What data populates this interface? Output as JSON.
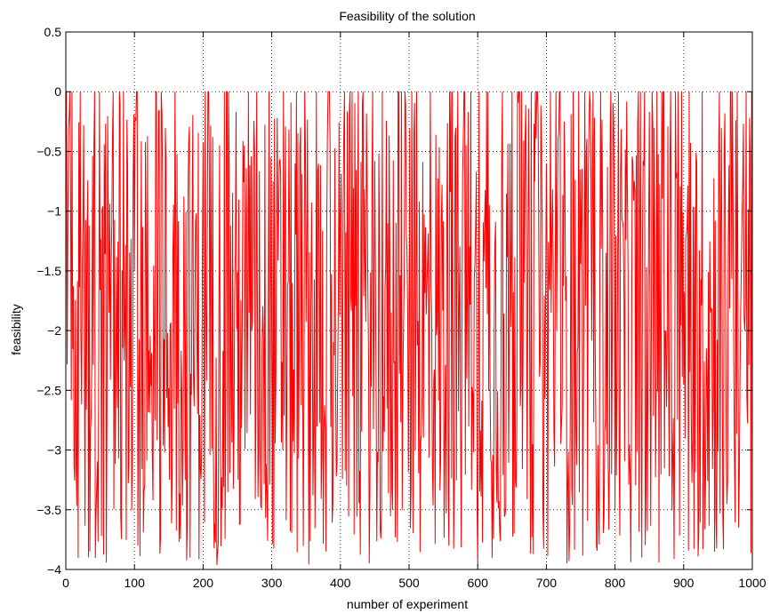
{
  "chart_data": {
    "type": "line",
    "title": "Feasibility of the solution",
    "xlabel": "number of experiment",
    "ylabel": "feasibility",
    "xlim": [
      0,
      1000
    ],
    "ylim": [
      -4,
      0.5
    ],
    "xticks": [
      0,
      100,
      200,
      300,
      400,
      500,
      600,
      700,
      800,
      900,
      1000
    ],
    "yticks": [
      -4,
      -3.5,
      -3,
      -2.5,
      -2,
      -1.5,
      -1,
      -0.5,
      0,
      0.5
    ],
    "xtick_labels": [
      "0",
      "100",
      "200",
      "300",
      "400",
      "500",
      "600",
      "700",
      "800",
      "900",
      "1000"
    ],
    "ytick_labels": [
      "−4",
      "−3.5",
      "−3",
      "−2.5",
      "−2",
      "−1.5",
      "−1",
      "−0.5",
      "0",
      "0.5"
    ],
    "grid": true,
    "grid_style": "dotted",
    "series": [
      {
        "color": "#ff0000",
        "x_range": [
          1,
          1000
        ],
        "value_range": [
          -4,
          0
        ],
        "point_count": 1000,
        "description_of_values": "dense noisy signal, values approximately uniformly spread between -4 and 0, many points exactly at 0"
      }
    ]
  },
  "colors": {
    "line": "#ff0000",
    "axes": "#000000",
    "grid": "#000000",
    "background": "#ffffff"
  }
}
